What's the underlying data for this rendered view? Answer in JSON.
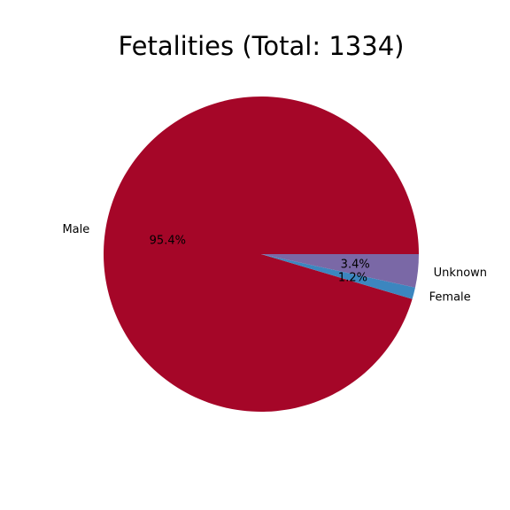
{
  "chart_data": {
    "type": "pie",
    "title": "Fetalities (Total: 1334)",
    "categories": [
      "Male",
      "Female",
      "Unknown"
    ],
    "values": [
      95.4,
      1.2,
      3.4
    ],
    "value_labels": [
      "95.4%",
      "1.2%",
      "3.4%"
    ],
    "colors": [
      "#A50628",
      "#3C86BF",
      "#7A68A6"
    ],
    "start_angle_deg": 0,
    "direction": "counterclockwise",
    "legend": "none"
  }
}
